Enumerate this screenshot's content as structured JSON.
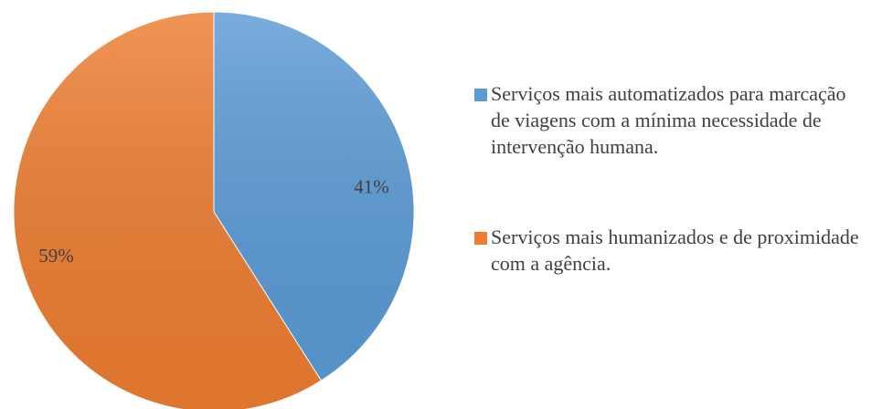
{
  "chart_data": {
    "type": "pie",
    "categories": [
      "Serviços mais automatizados para marcação de viagens com a mínima necessidade de intervenção humana.",
      "Serviços mais humanizados e de proximidade com a agência."
    ],
    "values": [
      41,
      59
    ],
    "value_labels": [
      "41%",
      "59%"
    ],
    "colors": [
      "#5b9bd5",
      "#ed7d31"
    ]
  }
}
